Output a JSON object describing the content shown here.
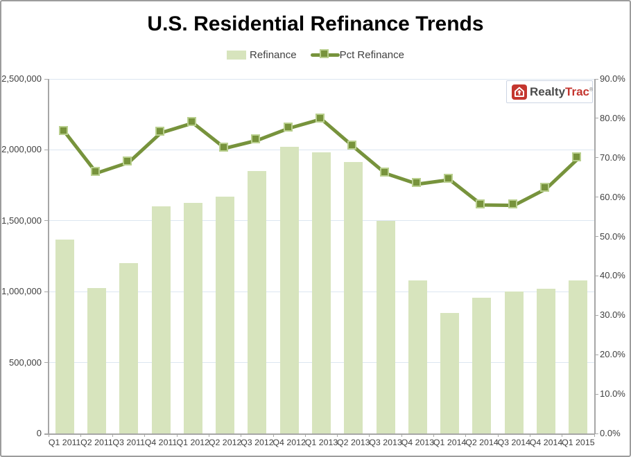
{
  "title": "U.S. Residential Refinance Trends",
  "legend": {
    "refinance_label": "Refinance",
    "pct_refinance_label": "Pct Refinance"
  },
  "logo": {
    "realty": "Realty",
    "trac": "Trac",
    "mark": "®"
  },
  "colors": {
    "bar_fill": "#d7e4bd",
    "line": "#77933c",
    "marker_border": "#b9cf8e",
    "gridline": "#dce6f1",
    "axis": "#a6a6a6",
    "text": "#404040",
    "logo_red": "#c4362f",
    "logo_dark": "#4a4a4a"
  },
  "chart_data": {
    "type": "bar",
    "subtype": "bar+line combo, dual axis",
    "title": "U.S. Residential Refinance Trends",
    "categories": [
      "Q1 2011",
      "Q2 2011",
      "Q3 2011",
      "Q4 2011",
      "Q1 2012",
      "Q2 2012",
      "Q3 2012",
      "Q4 2012",
      "Q1 2013",
      "Q2 2013",
      "Q3 2013",
      "Q4 2013",
      "Q1 2014",
      "Q2 2014",
      "Q3 2014",
      "Q4 2014",
      "Q1 2015"
    ],
    "series": [
      {
        "name": "Refinance",
        "type": "bar",
        "axis": "left",
        "values": [
          1365000,
          1025000,
          1200000,
          1600000,
          1625000,
          1670000,
          1850000,
          2020000,
          1980000,
          1915000,
          1500000,
          1080000,
          850000,
          955000,
          1000000,
          1020000,
          1080000
        ]
      },
      {
        "name": "Pct Refinance",
        "type": "line",
        "axis": "right",
        "values": [
          76.6,
          66.1,
          68.8,
          76.3,
          78.8,
          72.4,
          74.4,
          77.5,
          79.8,
          72.8,
          66.0,
          63.3,
          64.4,
          58.0,
          57.9,
          62.1,
          69.8
        ]
      }
    ],
    "left_axis": {
      "min": 0,
      "max": 2500000,
      "tick_step": 500000,
      "tick_labels": [
        "2,500,000",
        "2,000,000",
        "1,500,000",
        "1,000,000",
        "500,000",
        "0"
      ]
    },
    "right_axis": {
      "min": 0,
      "max": 90,
      "tick_step": 10,
      "tick_labels": [
        "90.0%",
        "80.0%",
        "70.0%",
        "60.0%",
        "50.0%",
        "40.0%",
        "30.0%",
        "20.0%",
        "10.0%",
        "0.0%"
      ]
    },
    "grid": true,
    "legend_position": "top"
  }
}
